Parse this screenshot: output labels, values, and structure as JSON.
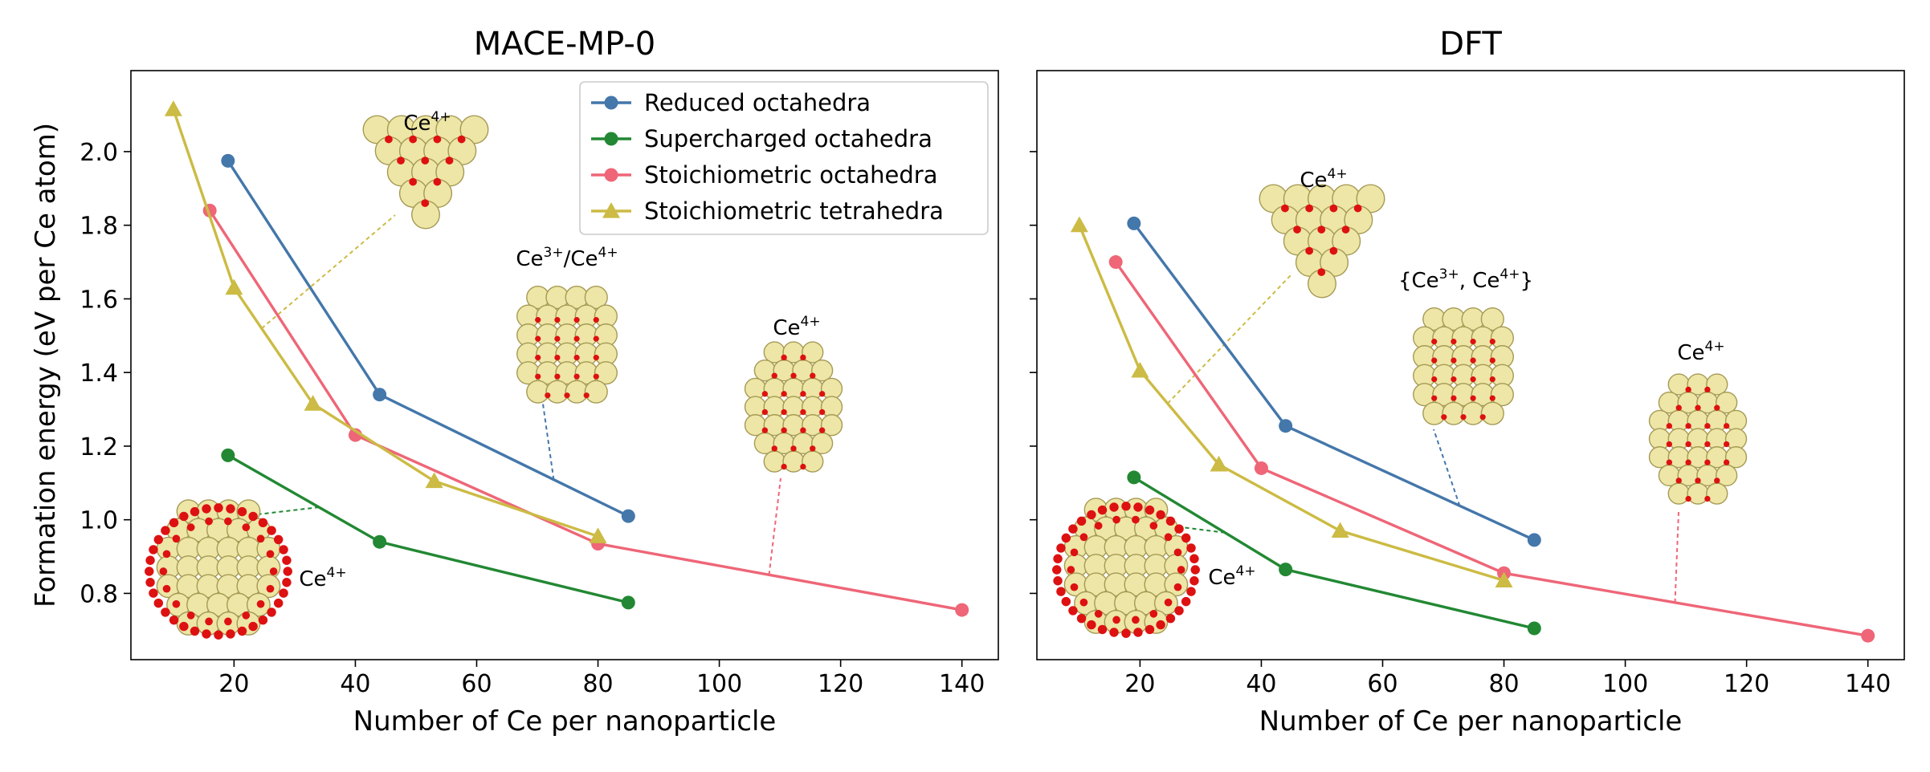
{
  "chart_data": [
    {
      "type": "line",
      "title": "MACE-MP-0",
      "xlabel": "Number of Ce per nanoparticle",
      "ylabel": "Formation energy (eV per Ce atom)",
      "xlim": [
        3,
        146
      ],
      "ylim": [
        0.62,
        2.22
      ],
      "xticks": [
        20,
        40,
        60,
        80,
        100,
        120,
        140
      ],
      "yticks": [
        0.8,
        1.0,
        1.2,
        1.4,
        1.6,
        1.8,
        2.0
      ],
      "ytick_labels_shown": true,
      "grid": false,
      "legend_position": "top-right",
      "series": [
        {
          "name": "Reduced octahedra",
          "color": "#4477aa",
          "marker": "circle",
          "x": [
            19,
            44,
            85
          ],
          "y": [
            1.975,
            1.34,
            1.01
          ]
        },
        {
          "name": "Supercharged octahedra",
          "color": "#228833",
          "marker": "circle",
          "x": [
            19,
            44,
            85
          ],
          "y": [
            1.175,
            0.94,
            0.775
          ]
        },
        {
          "name": "Stoichiometric octahedra",
          "color": "#ee6677",
          "marker": "circle",
          "x": [
            16,
            40,
            80,
            140
          ],
          "y": [
            1.84,
            1.23,
            0.935,
            0.755
          ]
        },
        {
          "name": "Stoichiometric tetrahedra",
          "color": "#ccbb44",
          "marker": "triangle",
          "x": [
            10,
            20,
            33,
            53,
            80
          ],
          "y": [
            2.115,
            1.63,
            1.315,
            1.105,
            0.955
          ]
        }
      ],
      "annotations": [
        {
          "base": "Ce",
          "sup": "4+",
          "tail": ""
        },
        {
          "base": "Ce",
          "sup": "3+",
          "tail": "/Ce",
          "sup2": "4+"
        },
        {
          "base": "Ce",
          "sup": "4+",
          "tail": ""
        },
        {
          "base": "Ce",
          "sup": "4+",
          "tail": ""
        }
      ]
    },
    {
      "type": "line",
      "title": "DFT",
      "xlabel": "Number of Ce per nanoparticle",
      "ylabel": "",
      "xlim": [
        3,
        146
      ],
      "ylim": [
        0.62,
        2.22
      ],
      "xticks": [
        20,
        40,
        60,
        80,
        100,
        120,
        140
      ],
      "yticks": [
        0.8,
        1.0,
        1.2,
        1.4,
        1.6,
        1.8,
        2.0
      ],
      "ytick_labels_shown": false,
      "grid": false,
      "series": [
        {
          "name": "Reduced octahedra",
          "color": "#4477aa",
          "marker": "circle",
          "x": [
            19,
            44,
            85
          ],
          "y": [
            1.805,
            1.255,
            0.945
          ]
        },
        {
          "name": "Supercharged octahedra",
          "color": "#228833",
          "marker": "circle",
          "x": [
            19,
            44,
            85
          ],
          "y": [
            1.115,
            0.865,
            0.705
          ]
        },
        {
          "name": "Stoichiometric octahedra",
          "color": "#ee6677",
          "marker": "circle",
          "x": [
            16,
            40,
            80,
            140
          ],
          "y": [
            1.7,
            1.14,
            0.855,
            0.685
          ]
        },
        {
          "name": "Stoichiometric tetrahedra",
          "color": "#ccbb44",
          "marker": "triangle",
          "x": [
            10,
            20,
            33,
            53,
            80
          ],
          "y": [
            1.8,
            1.405,
            1.15,
            0.97,
            0.835
          ]
        }
      ],
      "annotations": [
        {
          "base": "Ce",
          "sup": "4+",
          "tail": ""
        },
        {
          "base": "{Ce",
          "sup": "3+",
          "tail": ", Ce",
          "sup2": "4+",
          "tail2": "}"
        },
        {
          "base": "Ce",
          "sup": "4+",
          "tail": ""
        },
        {
          "base": "Ce",
          "sup": "4+",
          "tail": ""
        }
      ]
    }
  ],
  "colors": {
    "atom_ce": "#eee6a6",
    "atom_ce_edge": "#a59a55",
    "atom_o": "#dd1111"
  }
}
